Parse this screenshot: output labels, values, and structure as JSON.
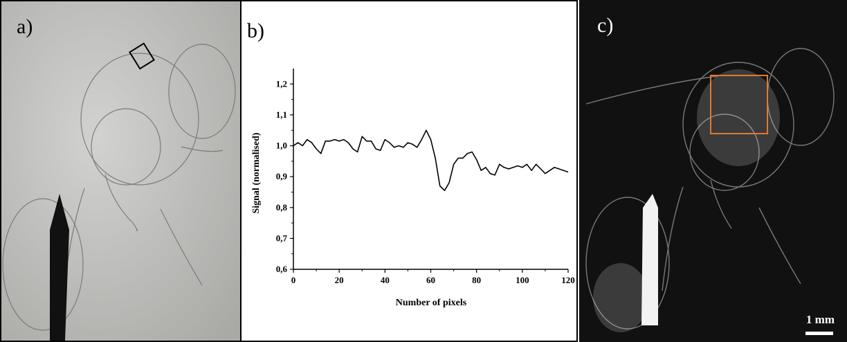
{
  "panels": {
    "a": {
      "label": "a)"
    },
    "b": {
      "label": "b)"
    },
    "c": {
      "label": "c)",
      "scale_bar": "1 mm"
    }
  },
  "colors": {
    "roi_box_a": "#000000",
    "roi_box_c": "#e07a2e",
    "line": "#000000"
  },
  "chart_data": {
    "type": "line",
    "xlabel": "Number of pixels",
    "ylabel": "Signal (normalised)",
    "xlim": [
      0,
      120
    ],
    "ylim": [
      0.6,
      1.25
    ],
    "xticks": [
      0,
      20,
      40,
      60,
      80,
      100,
      120
    ],
    "xtick_labels": [
      "0",
      "20",
      "40",
      "60",
      "80",
      "100",
      "120"
    ],
    "yticks": [
      0.6,
      0.7,
      0.8,
      0.9,
      1.0,
      1.1,
      1.2
    ],
    "ytick_labels": [
      "0,6",
      "0,7",
      "0,8",
      "0,9",
      "1,0",
      "1,1",
      "1,2"
    ],
    "grid": false,
    "x": [
      0,
      2,
      4,
      6,
      8,
      10,
      12,
      14,
      16,
      18,
      20,
      22,
      24,
      26,
      28,
      30,
      32,
      34,
      36,
      38,
      40,
      42,
      44,
      46,
      48,
      50,
      52,
      54,
      56,
      58,
      60,
      62,
      64,
      66,
      68,
      70,
      72,
      74,
      76,
      78,
      80,
      82,
      84,
      86,
      88,
      90,
      92,
      94,
      96,
      98,
      100,
      102,
      104,
      106,
      108,
      110,
      112,
      114,
      116,
      118,
      120
    ],
    "y": [
      1.0,
      1.01,
      1.0,
      1.02,
      1.01,
      0.99,
      0.975,
      1.015,
      1.015,
      1.02,
      1.015,
      1.02,
      1.01,
      0.99,
      0.98,
      1.03,
      1.015,
      1.015,
      0.99,
      0.985,
      1.02,
      1.01,
      0.995,
      1.0,
      0.995,
      1.01,
      1.005,
      0.995,
      1.02,
      1.05,
      1.02,
      0.96,
      0.87,
      0.855,
      0.88,
      0.94,
      0.96,
      0.96,
      0.975,
      0.98,
      0.955,
      0.92,
      0.93,
      0.91,
      0.905,
      0.94,
      0.93,
      0.925,
      0.93,
      0.935,
      0.93,
      0.94,
      0.92,
      0.94,
      0.925,
      0.91,
      0.92,
      0.93,
      0.925,
      0.92,
      0.915
    ]
  }
}
